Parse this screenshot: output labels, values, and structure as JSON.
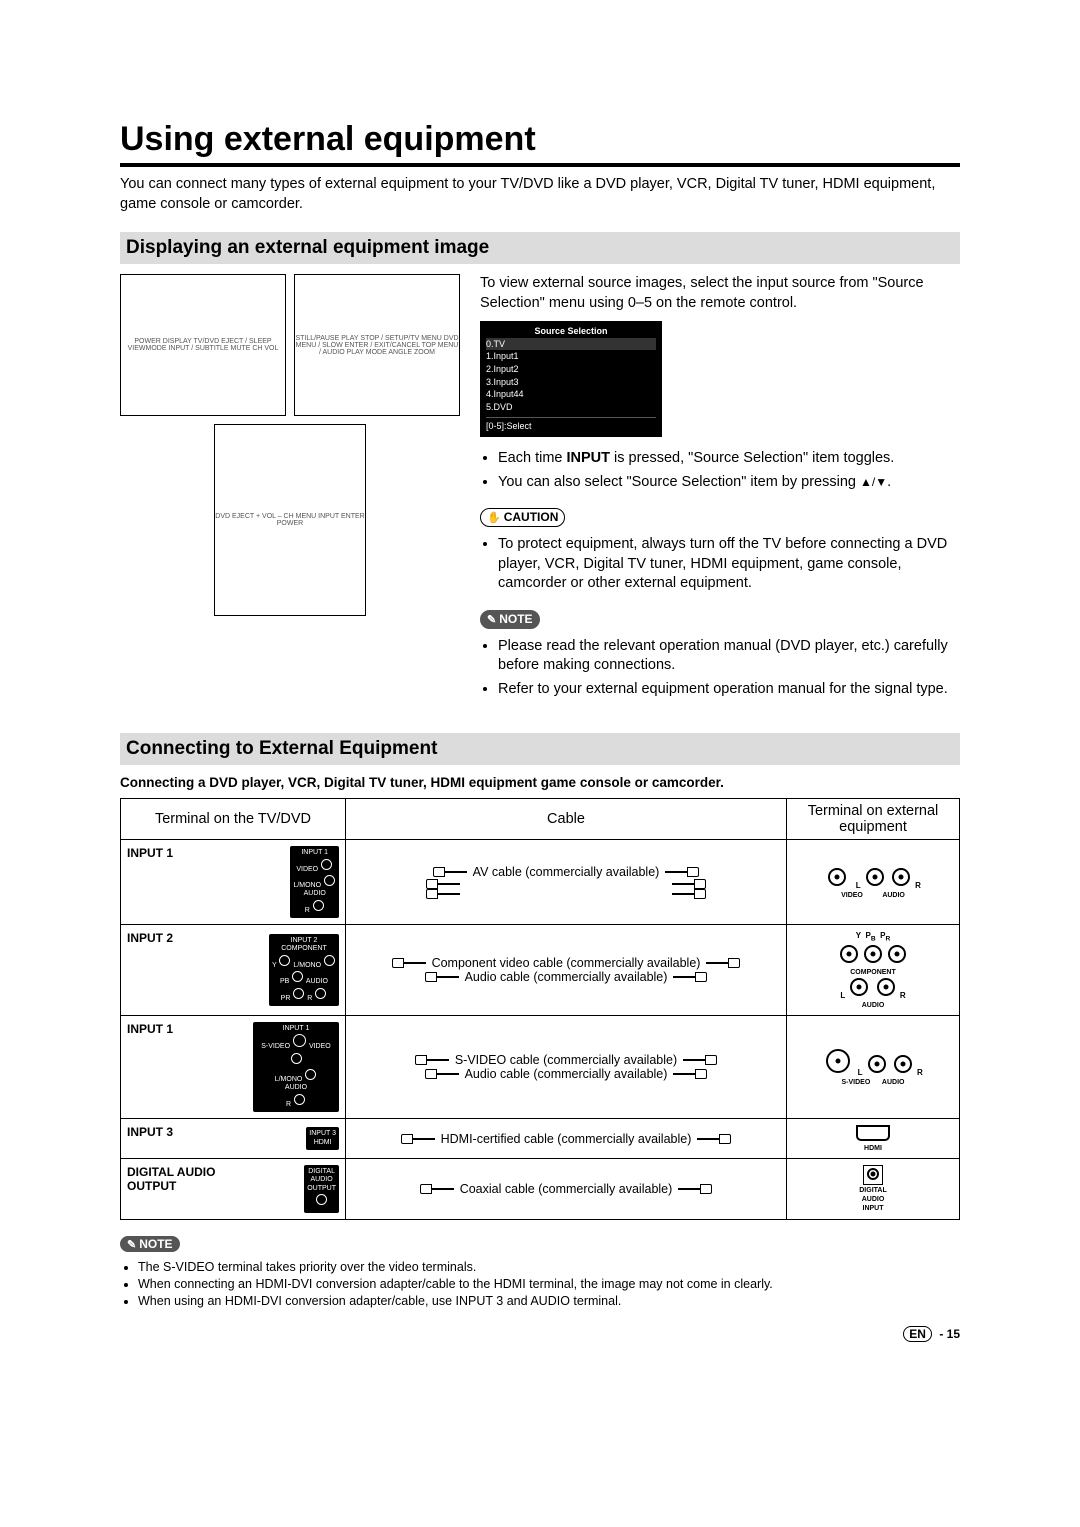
{
  "page": {
    "title": "Using external equipment",
    "intro": "You can connect many types of external equipment to your TV/DVD like a DVD player, VCR, Digital TV tuner, HDMI equipment, game console or camcorder.",
    "footer_lang": "EN",
    "footer_page": "- 15"
  },
  "section1": {
    "heading": "Displaying an external equipment image",
    "right_paragraph": "To view external source images, select the input source from \"Source Selection\" menu using 0–5 on the remote control.",
    "menu": {
      "title": "Source Selection",
      "items": [
        "0.TV",
        "1.Input1",
        "2.Input2",
        "3.Input3",
        "4.Input44",
        "5.DVD"
      ],
      "select_hint": "[0-5]:Select"
    },
    "bullets": [
      "Each time INPUT is pressed, \"Source Selection\" item toggles.",
      "You can also select \"Source Selection\" item by pressing ▲/▼."
    ],
    "caution_label": "CAUTION",
    "caution": [
      "To protect equipment, always turn off the TV before connecting a DVD player, VCR, Digital TV tuner, HDMI equipment, game console, camcorder or other external equipment."
    ],
    "note_label": "NOTE",
    "notes": [
      "Please read the relevant operation manual (DVD player, etc.) carefully before making connections.",
      "Refer to your external equipment operation manual for the signal type."
    ],
    "remote_top_labels": "POWER DISPLAY TV/DVD EJECT / SLEEP VIEWMODE INPUT / SUBTITLE MUTE CH VOL",
    "remote_mid_labels": "STILL/PAUSE PLAY STOP / SETUP/TV MENU DVD MENU / SLOW ENTER / EXIT/CANCEL TOP MENU / AUDIO PLAY MODE ANGLE ZOOM",
    "remote_side_labels": "DVD EJECT + VOL – CH MENU INPUT ENTER POWER"
  },
  "section2": {
    "heading": "Connecting to External Equipment",
    "subhead": "Connecting a DVD player, VCR, Digital TV tuner, HDMI equipment game console or camcorder.",
    "table": {
      "headers": [
        "Terminal on the TV/DVD",
        "Cable",
        "Terminal on external equipment"
      ],
      "rows": [
        {
          "label": "INPUT 1",
          "term_fig": "INPUT 1\nVIDEO ●\nL/MONO ●\nAUDIO\nR ●",
          "cables": [
            "AV cable (commercially available)"
          ],
          "ext": {
            "type": "av",
            "top": "L  R",
            "bottom": "VIDEO      AUDIO"
          }
        },
        {
          "label": "INPUT 2",
          "term_fig": "INPUT 2\nCOMPONENT\nY ●  L/MONO ●\nPB ●  AUDIO\nPR ●  R ●",
          "cables": [
            "Component video cable (commercially available)",
            "Audio cable (commercially available)"
          ],
          "ext": {
            "type": "component",
            "top": "Y  PB  PR",
            "mid": "COMPONENT",
            "bottom": "L  R",
            "bottom2": "AUDIO"
          }
        },
        {
          "label": "INPUT 1",
          "term_fig": "INPUT 1\nS-VIDEO ◉  VIDEO ●\nL/MONO ●\nAUDIO\nR ●",
          "cables": [
            "S-VIDEO cable (commercially available)",
            "Audio cable (commercially available)"
          ],
          "ext": {
            "type": "svideo",
            "top": "L  R",
            "bottom": "S-VIDEO    AUDIO"
          }
        },
        {
          "label": "INPUT 3",
          "term_fig": "INPUT 3\nHDMI",
          "cables": [
            "HDMI-certified cable (commercially available)"
          ],
          "ext": {
            "type": "hdmi",
            "bottom": "HDMI"
          }
        },
        {
          "label": "DIGITAL AUDIO OUTPUT",
          "term_fig": "DIGITAL\nAUDIO\nOUTPUT\n●",
          "cables": [
            "Coaxial cable (commercially available)"
          ],
          "ext": {
            "type": "coax",
            "bottom": "DIGITAL\nAUDIO\nINPUT"
          }
        }
      ]
    },
    "note_label": "NOTE",
    "notes": [
      "The S-VIDEO terminal takes priority over the video terminals.",
      "When connecting an HDMI-DVI conversion adapter/cable to the HDMI terminal, the image may not come in clearly.",
      "When using an HDMI-DVI conversion adapter/cable, use INPUT 3 and AUDIO terminal."
    ]
  },
  "colors": {
    "section_bar_bg": "#dcdcdc",
    "note_badge_bg": "#555555",
    "menu_bg": "#000000",
    "text": "#000000",
    "page_bg": "#ffffff"
  }
}
